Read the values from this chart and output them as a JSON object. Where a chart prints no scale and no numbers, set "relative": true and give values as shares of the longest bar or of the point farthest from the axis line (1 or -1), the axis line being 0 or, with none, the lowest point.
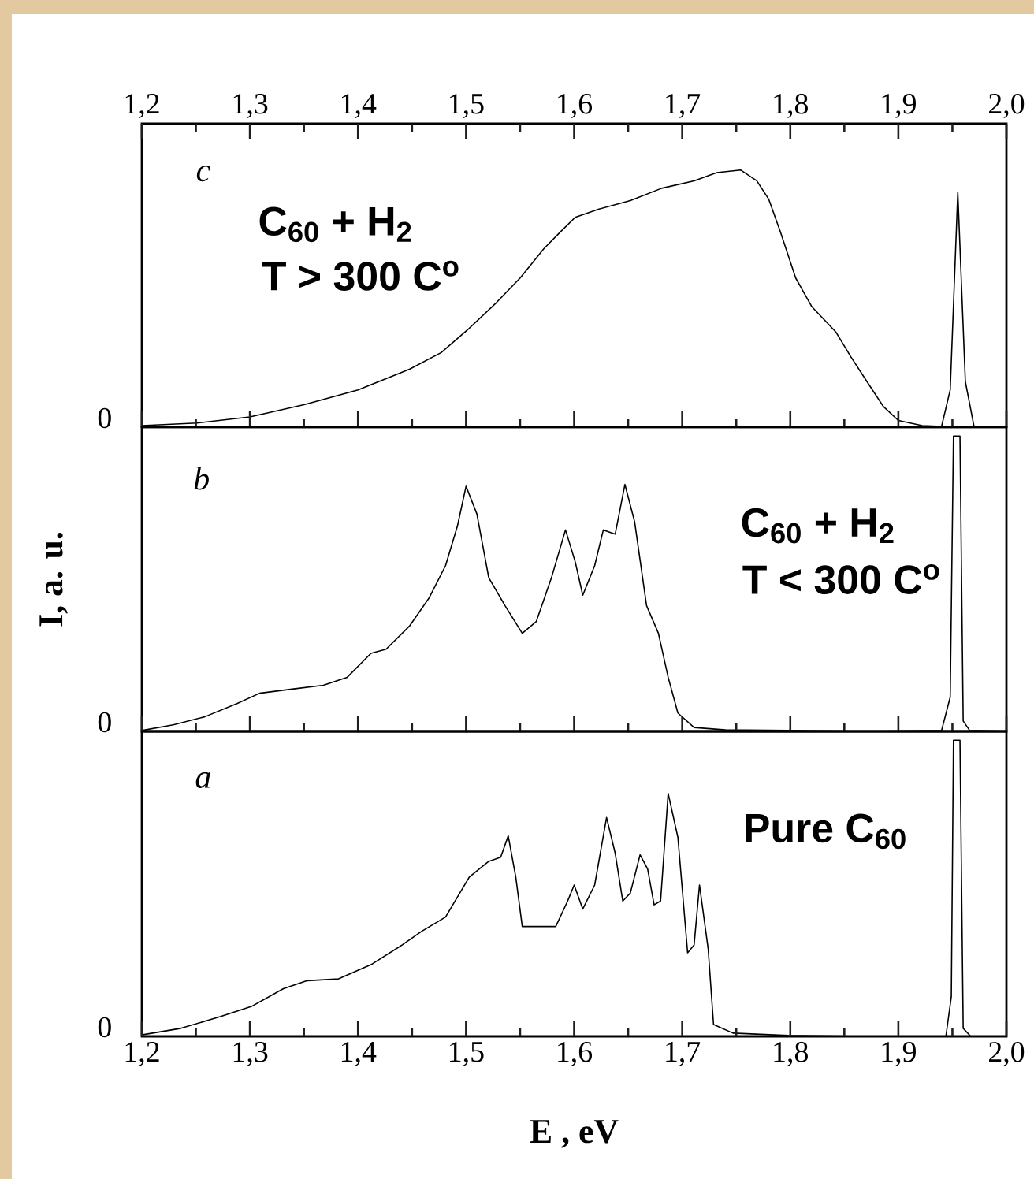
{
  "chart_data": [
    {
      "type": "line",
      "relative": true,
      "xlim": [
        1.2,
        2.0
      ],
      "tick_labels": "x",
      "xticks": [
        {
          "value": 1.2,
          "label": "1,2"
        },
        {
          "value": 1.3,
          "label": "1,3"
        },
        {
          "value": 1.4,
          "label": "1,4"
        },
        {
          "value": 1.5,
          "label": "1,5"
        },
        {
          "value": 1.6,
          "label": "1,6"
        },
        {
          "value": 1.7,
          "label": "1,7"
        },
        {
          "value": 1.8,
          "label": "1,8"
        },
        {
          "value": 1.9,
          "label": "1,9"
        },
        {
          "value": 2.0,
          "label": "2,0"
        }
      ],
      "annotations": [
        "c",
        "C$_{60}$ + H$_{2}$",
        "T > 300 C$^{o}$",
        "0"
      ],
      "series": [
        {
          "color": "#000000",
          "x": [
            1.2,
            1.251,
            1.3,
            1.35,
            1.4,
            1.448,
            1.477,
            1.501,
            1.528,
            1.55,
            1.572,
            1.587,
            1.601,
            1.623,
            1.652,
            1.681,
            1.711,
            1.732,
            1.754,
            1.769,
            1.78,
            1.791,
            1.805,
            1.82,
            1.842,
            1.856,
            1.871,
            1.886,
            1.9,
            1.922,
            1.94,
            1.948,
            1.955,
            1.962,
            1.97,
            2.0
          ],
          "values": [
            0.006,
            0.016,
            0.04,
            0.087,
            0.145,
            0.226,
            0.29,
            0.377,
            0.484,
            0.58,
            0.694,
            0.758,
            0.816,
            0.848,
            0.881,
            0.929,
            0.958,
            0.99,
            1.0,
            0.958,
            0.887,
            0.758,
            0.58,
            0.468,
            0.371,
            0.274,
            0.177,
            0.081,
            0.026,
            0.006,
            0.003,
            0.145,
            0.913,
            0.177,
            0.003,
            0
          ]
        }
      ]
    },
    {
      "type": "line",
      "relative": true,
      "xlim": [
        1.2,
        2.0
      ],
      "tick_labels": false,
      "ylabel": "I, a. u.",
      "xticks": [
        {
          "value": 1.2,
          "label": null
        },
        {
          "value": 1.3,
          "label": null
        },
        {
          "value": 1.4,
          "label": null
        },
        {
          "value": 1.5,
          "label": null
        },
        {
          "value": 1.6,
          "label": null
        },
        {
          "value": 1.7,
          "label": null
        },
        {
          "value": 1.8,
          "label": null
        },
        {
          "value": 1.9,
          "label": null
        },
        {
          "value": 2.0,
          "label": null
        }
      ],
      "annotations": [
        "b",
        "C$_{60}$ + H$_{2}$",
        "T < 300 C$^{o}$",
        "0"
      ],
      "series": [
        {
          "color": "#000000",
          "x": [
            1.2,
            1.229,
            1.258,
            1.288,
            1.309,
            1.339,
            1.368,
            1.39,
            1.412,
            1.426,
            1.448,
            1.466,
            1.481,
            1.492,
            1.5,
            1.51,
            1.521,
            1.536,
            1.552,
            1.565,
            1.579,
            1.592,
            1.601,
            1.608,
            1.619,
            1.627,
            1.638,
            1.647,
            1.656,
            1.667,
            1.678,
            1.687,
            1.696,
            1.711,
            1.74,
            1.798,
            1.871,
            1.94,
            1.948,
            1.951,
            1.957,
            1.96,
            1.966,
            2.0
          ],
          "values": [
            0.003,
            0.022,
            0.049,
            0.094,
            0.129,
            0.143,
            0.156,
            0.183,
            0.264,
            0.278,
            0.358,
            0.453,
            0.561,
            0.695,
            0.83,
            0.736,
            0.52,
            0.426,
            0.332,
            0.372,
            0.52,
            0.682,
            0.574,
            0.461,
            0.561,
            0.682,
            0.668,
            0.836,
            0.709,
            0.426,
            0.332,
            0.183,
            0.062,
            0.013,
            0.005,
            0.003,
            0,
            0.003,
            0.116,
            1.0,
            1.0,
            0.035,
            0.003,
            0
          ]
        }
      ]
    },
    {
      "type": "line",
      "relative": true,
      "xlim": [
        1.2,
        2.0
      ],
      "tick_labels": "x",
      "xlabel": "E ,  eV",
      "xticks": [
        {
          "value": 1.2,
          "label": "1,2"
        },
        {
          "value": 1.3,
          "label": "1,3"
        },
        {
          "value": 1.4,
          "label": "1,4"
        },
        {
          "value": 1.5,
          "label": "1,5"
        },
        {
          "value": 1.6,
          "label": "1,6"
        },
        {
          "value": 1.7,
          "label": "1,7"
        },
        {
          "value": 1.8,
          "label": "1,8"
        },
        {
          "value": 1.9,
          "label": "1,9"
        },
        {
          "value": 2.0,
          "label": "2,0"
        }
      ],
      "annotations": [
        "a",
        "Pure C$_{60}$",
        "0"
      ],
      "series": [
        {
          "color": "#000000",
          "x": [
            1.2,
            1.236,
            1.273,
            1.302,
            1.331,
            1.353,
            1.382,
            1.412,
            1.441,
            1.459,
            1.481,
            1.503,
            1.521,
            1.532,
            1.539,
            1.546,
            1.552,
            1.565,
            1.583,
            1.594,
            1.6,
            1.608,
            1.619,
            1.63,
            1.638,
            1.645,
            1.652,
            1.661,
            1.668,
            1.674,
            1.68,
            1.687,
            1.696,
            1.705,
            1.711,
            1.716,
            1.724,
            1.729,
            1.747,
            1.798,
            1.871,
            1.944,
            1.949,
            1.951,
            1.957,
            1.96,
            1.967,
            2.0
          ],
          "values": [
            0.005,
            0.027,
            0.067,
            0.102,
            0.161,
            0.188,
            0.194,
            0.242,
            0.309,
            0.355,
            0.403,
            0.538,
            0.591,
            0.605,
            0.677,
            0.538,
            0.371,
            0.371,
            0.371,
            0.457,
            0.511,
            0.43,
            0.511,
            0.739,
            0.618,
            0.457,
            0.484,
            0.613,
            0.565,
            0.444,
            0.457,
            0.82,
            0.672,
            0.282,
            0.309,
            0.511,
            0.296,
            0.04,
            0.011,
            0.003,
            0,
            0,
            0.134,
            1.0,
            1.0,
            0.027,
            0,
            0
          ]
        }
      ]
    }
  ]
}
